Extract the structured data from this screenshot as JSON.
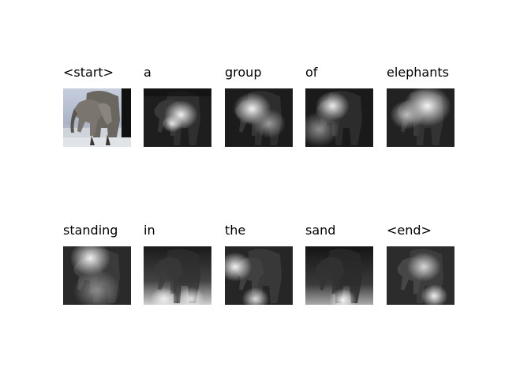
{
  "panels": [
    {
      "word": "<start>",
      "kind": "original"
    },
    {
      "word": "a",
      "kind": "attention",
      "focus": "center-right"
    },
    {
      "word": "group",
      "kind": "attention",
      "focus": "upper-center"
    },
    {
      "word": "of",
      "kind": "attention",
      "focus": "upper-left"
    },
    {
      "word": "elephants",
      "kind": "attention",
      "focus": "upper-right"
    },
    {
      "word": "standing",
      "kind": "attention",
      "focus": "upper-left"
    },
    {
      "word": "in",
      "kind": "attention",
      "focus": "bottom"
    },
    {
      "word": "the",
      "kind": "attention",
      "focus": "left"
    },
    {
      "word": "sand",
      "kind": "attention",
      "focus": "bottom"
    },
    {
      "word": "<end>",
      "kind": "attention",
      "focus": "center-right"
    }
  ],
  "colors": {
    "background": "#ffffff",
    "sky": "#b9c3d3",
    "elephant": "#6a6660",
    "elephant_dark": "#2a2724",
    "water": "#c8ced6",
    "attention_dark": "#111111",
    "attention_bright": "#f2f2f2"
  }
}
